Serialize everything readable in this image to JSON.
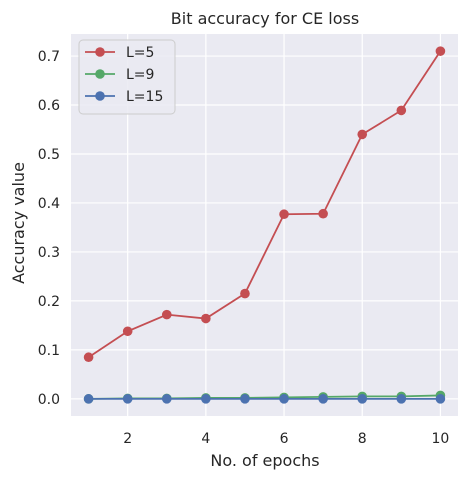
{
  "chart_data": {
    "type": "line",
    "title": "Bit accuracy for CE loss",
    "xlabel": "No. of epochs",
    "ylabel": "Accuracy value",
    "x": [
      1,
      2,
      3,
      4,
      5,
      6,
      7,
      8,
      9,
      10
    ],
    "xlim": [
      0.55,
      10.45
    ],
    "ylim": [
      -0.035,
      0.745
    ],
    "xticks": [
      2,
      4,
      6,
      8,
      10
    ],
    "xtick_labels": [
      "2",
      "4",
      "6",
      "8",
      "10"
    ],
    "yticks": [
      0.0,
      0.1,
      0.2,
      0.3,
      0.4,
      0.5,
      0.6,
      0.7
    ],
    "ytick_labels": [
      "0.0",
      "0.1",
      "0.2",
      "0.3",
      "0.4",
      "0.5",
      "0.6",
      "0.7"
    ],
    "grid": true,
    "legend_position": "top-left",
    "series": [
      {
        "name": "L=5",
        "color": "#c44e52",
        "marker": "circle",
        "values": [
          0.085,
          0.138,
          0.172,
          0.164,
          0.215,
          0.377,
          0.378,
          0.54,
          0.589,
          0.71
        ]
      },
      {
        "name": "L=9",
        "color": "#55a868",
        "marker": "circle",
        "values": [
          0.0,
          0.001,
          0.001,
          0.002,
          0.002,
          0.003,
          0.004,
          0.005,
          0.005,
          0.007
        ]
      },
      {
        "name": "L=15",
        "color": "#4c72b0",
        "marker": "circle",
        "values": [
          0.0,
          0.0,
          0.0,
          0.0,
          0.0,
          0.0,
          0.0,
          0.0,
          0.0,
          0.0
        ]
      }
    ]
  }
}
